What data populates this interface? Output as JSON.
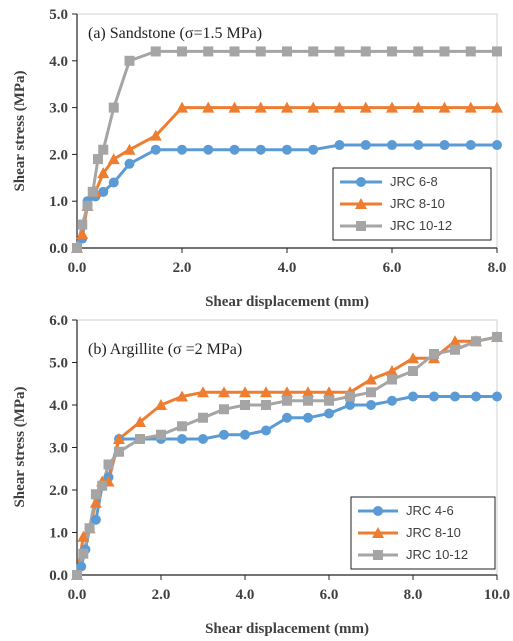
{
  "chart_data": [
    {
      "type": "line",
      "title": "(a) Sandstone (σ=1.5 MPa)",
      "xlabel": "Shear displacement (mm)",
      "ylabel": "Shear stress (MPa)",
      "xlim": [
        0,
        8
      ],
      "ylim": [
        0,
        5
      ],
      "xticks": [
        "0.0",
        "2.0",
        "4.0",
        "6.0",
        "8.0"
      ],
      "yticks": [
        "0.0",
        "1.0",
        "2.0",
        "3.0",
        "4.0",
        "5.0"
      ],
      "grid": "none",
      "legend": "bottom-right",
      "series": [
        {
          "name": "JRC 6-8",
          "color": "#5B9BD5",
          "marker": "circle",
          "points": [
            [
              0,
              0
            ],
            [
              0.1,
              0.2
            ],
            [
              0.2,
              1.0
            ],
            [
              0.35,
              1.1
            ],
            [
              0.5,
              1.2
            ],
            [
              0.7,
              1.4
            ],
            [
              1.0,
              1.8
            ],
            [
              1.5,
              2.1
            ],
            [
              2.0,
              2.1
            ],
            [
              2.5,
              2.1
            ],
            [
              3.0,
              2.1
            ],
            [
              3.5,
              2.1
            ],
            [
              4.0,
              2.1
            ],
            [
              4.5,
              2.1
            ],
            [
              5.0,
              2.2
            ],
            [
              5.5,
              2.2
            ],
            [
              6.0,
              2.2
            ],
            [
              6.5,
              2.2
            ],
            [
              7.0,
              2.2
            ],
            [
              7.5,
              2.2
            ],
            [
              8.0,
              2.2
            ]
          ]
        },
        {
          "name": "JRC 8-10",
          "color": "#ED7D31",
          "marker": "triangle",
          "points": [
            [
              0,
              0
            ],
            [
              0.1,
              0.3
            ],
            [
              0.2,
              0.9
            ],
            [
              0.35,
              1.2
            ],
            [
              0.5,
              1.6
            ],
            [
              0.7,
              1.9
            ],
            [
              1.0,
              2.1
            ],
            [
              1.5,
              2.4
            ],
            [
              2.0,
              3.0
            ],
            [
              2.5,
              3.0
            ],
            [
              3.0,
              3.0
            ],
            [
              3.5,
              3.0
            ],
            [
              4.0,
              3.0
            ],
            [
              4.5,
              3.0
            ],
            [
              5.0,
              3.0
            ],
            [
              5.5,
              3.0
            ],
            [
              6.0,
              3.0
            ],
            [
              6.5,
              3.0
            ],
            [
              7.0,
              3.0
            ],
            [
              7.5,
              3.0
            ],
            [
              8.0,
              3.0
            ]
          ]
        },
        {
          "name": "JRC 10-12",
          "color": "#A5A5A5",
          "marker": "square",
          "points": [
            [
              0,
              0
            ],
            [
              0.1,
              0.5
            ],
            [
              0.2,
              0.9
            ],
            [
              0.3,
              1.2
            ],
            [
              0.4,
              1.9
            ],
            [
              0.5,
              2.1
            ],
            [
              0.7,
              3.0
            ],
            [
              1.0,
              4.0
            ],
            [
              1.5,
              4.2
            ],
            [
              2.0,
              4.2
            ],
            [
              2.5,
              4.2
            ],
            [
              3.0,
              4.2
            ],
            [
              3.5,
              4.2
            ],
            [
              4.0,
              4.2
            ],
            [
              4.5,
              4.2
            ],
            [
              5.0,
              4.2
            ],
            [
              5.5,
              4.2
            ],
            [
              6.0,
              4.2
            ],
            [
              6.5,
              4.2
            ],
            [
              7.0,
              4.2
            ],
            [
              7.5,
              4.2
            ],
            [
              8.0,
              4.2
            ]
          ]
        }
      ]
    },
    {
      "type": "line",
      "title": "(b) Argillite (σ =2 MPa)",
      "xlabel": "Shear displacement (mm)",
      "ylabel": "Shear stress (MPa)",
      "xlim": [
        0,
        10
      ],
      "ylim": [
        0,
        6
      ],
      "xticks": [
        "0.0",
        "2.0",
        "4.0",
        "6.0",
        "8.0",
        "10.0"
      ],
      "yticks": [
        "0.0",
        "1.0",
        "2.0",
        "3.0",
        "4.0",
        "5.0",
        "6.0"
      ],
      "grid": "none",
      "legend": "bottom-right",
      "series": [
        {
          "name": "JRC 4-6",
          "color": "#5B9BD5",
          "marker": "circle",
          "points": [
            [
              0,
              0
            ],
            [
              0.1,
              0.2
            ],
            [
              0.2,
              0.6
            ],
            [
              0.3,
              1.1
            ],
            [
              0.45,
              1.3
            ],
            [
              0.6,
              2.1
            ],
            [
              0.75,
              2.3
            ],
            [
              1.0,
              3.2
            ],
            [
              1.5,
              3.2
            ],
            [
              2.0,
              3.2
            ],
            [
              2.5,
              3.2
            ],
            [
              3.0,
              3.2
            ],
            [
              3.5,
              3.3
            ],
            [
              4.0,
              3.3
            ],
            [
              4.5,
              3.4
            ],
            [
              5.0,
              3.7
            ],
            [
              5.5,
              3.7
            ],
            [
              6.0,
              3.8
            ],
            [
              6.5,
              4.0
            ],
            [
              7.0,
              4.0
            ],
            [
              7.5,
              4.1
            ],
            [
              8.0,
              4.2
            ],
            [
              8.5,
              4.2
            ],
            [
              9.0,
              4.2
            ],
            [
              9.5,
              4.2
            ],
            [
              10.0,
              4.2
            ]
          ]
        },
        {
          "name": "JRC 8-10",
          "color": "#ED7D31",
          "marker": "triangle",
          "points": [
            [
              0,
              0
            ],
            [
              0.15,
              0.9
            ],
            [
              0.3,
              1.1
            ],
            [
              0.45,
              1.7
            ],
            [
              0.6,
              2.2
            ],
            [
              0.75,
              2.2
            ],
            [
              1.0,
              3.2
            ],
            [
              1.5,
              3.6
            ],
            [
              2.0,
              4.0
            ],
            [
              2.5,
              4.2
            ],
            [
              3.0,
              4.3
            ],
            [
              3.5,
              4.3
            ],
            [
              4.0,
              4.3
            ],
            [
              4.5,
              4.3
            ],
            [
              5.0,
              4.3
            ],
            [
              5.5,
              4.3
            ],
            [
              6.0,
              4.3
            ],
            [
              6.5,
              4.3
            ],
            [
              7.0,
              4.6
            ],
            [
              7.5,
              4.8
            ],
            [
              8.0,
              5.1
            ],
            [
              8.5,
              5.1
            ],
            [
              9.0,
              5.5
            ],
            [
              9.5,
              5.5
            ],
            [
              10.0,
              5.6
            ]
          ]
        },
        {
          "name": "JRC 10-12",
          "color": "#A5A5A5",
          "marker": "square",
          "points": [
            [
              0,
              0
            ],
            [
              0.15,
              0.5
            ],
            [
              0.3,
              1.1
            ],
            [
              0.45,
              1.9
            ],
            [
              0.6,
              2.1
            ],
            [
              0.75,
              2.6
            ],
            [
              1.0,
              2.9
            ],
            [
              1.5,
              3.2
            ],
            [
              2.0,
              3.3
            ],
            [
              2.5,
              3.5
            ],
            [
              3.0,
              3.7
            ],
            [
              3.5,
              3.9
            ],
            [
              4.0,
              4.0
            ],
            [
              4.5,
              4.0
            ],
            [
              5.0,
              4.1
            ],
            [
              5.5,
              4.1
            ],
            [
              6.0,
              4.1
            ],
            [
              6.5,
              4.2
            ],
            [
              7.0,
              4.3
            ],
            [
              7.5,
              4.6
            ],
            [
              8.0,
              4.8
            ],
            [
              8.5,
              5.2
            ],
            [
              9.0,
              5.3
            ],
            [
              9.5,
              5.5
            ],
            [
              10.0,
              5.6
            ]
          ]
        }
      ]
    }
  ]
}
